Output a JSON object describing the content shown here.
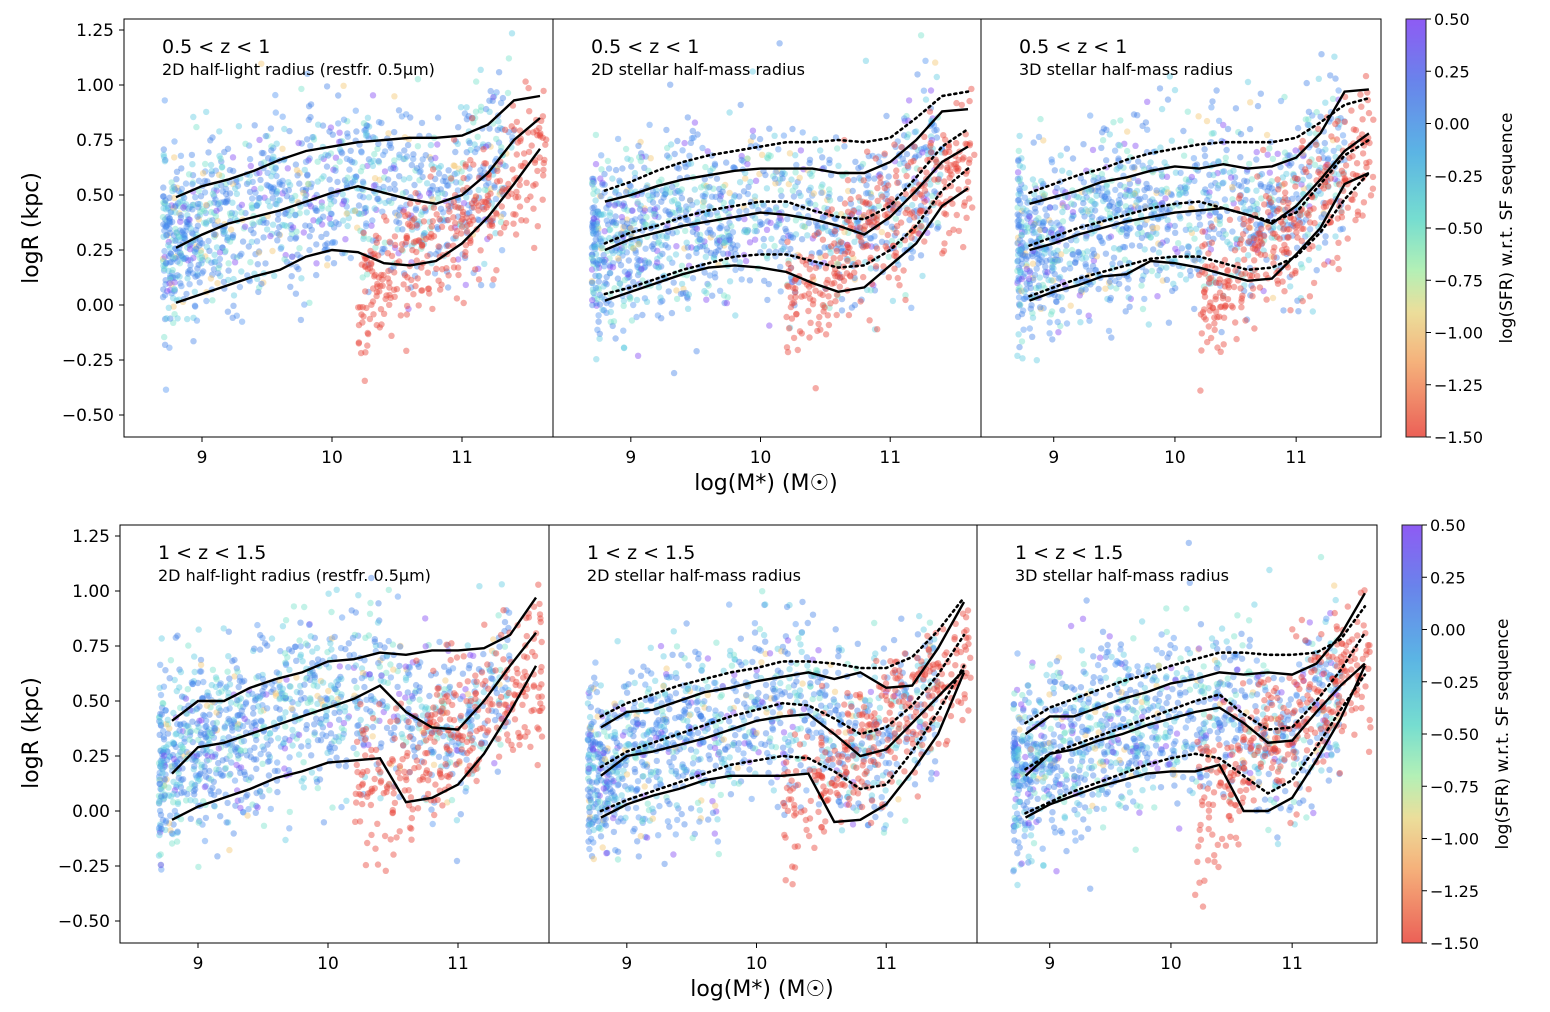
{
  "figure": {
    "y_axis_label": "logR (kpc)",
    "x_axis_label": "log(M*) (M☉)",
    "colorbar_label": "log(SFR) w.r.t. SF sequence"
  },
  "colors": {
    "star_forming_high": "#7b3ff2",
    "star_forming": "#3f7fe6",
    "green_valley": "#6fe0c8",
    "transition": "#f3c36a",
    "quiescent": "#e8453a",
    "median_lines": "#000000"
  },
  "chart_data": [
    {
      "type": "scatter",
      "row": "top",
      "redshift_label": "0.5 < z < 1",
      "subtitle": "2D half-light radius (restfr. 0.5μm)",
      "xlim": [
        8.4,
        11.7
      ],
      "ylim": [
        -0.6,
        1.3
      ],
      "xticks": [
        9,
        10,
        11
      ],
      "yticks": [
        -0.5,
        -0.25,
        0.0,
        0.25,
        0.5,
        0.75,
        1.0,
        1.25
      ],
      "x": [
        8.8,
        9.0,
        9.2,
        9.4,
        9.6,
        9.8,
        10.0,
        10.2,
        10.4,
        10.6,
        10.8,
        11.0,
        11.2,
        11.4,
        11.6
      ],
      "series": [
        {
          "style": "solid",
          "values": [
            0.49,
            0.54,
            0.57,
            0.61,
            0.66,
            0.7,
            0.72,
            0.74,
            0.75,
            0.76,
            0.76,
            0.77,
            0.82,
            0.93,
            0.95
          ]
        },
        {
          "style": "solid",
          "values": [
            0.26,
            0.32,
            0.37,
            0.4,
            0.43,
            0.47,
            0.51,
            0.54,
            0.51,
            0.48,
            0.46,
            0.5,
            0.6,
            0.75,
            0.85
          ]
        },
        {
          "style": "solid",
          "values": [
            0.01,
            0.05,
            0.09,
            0.13,
            0.16,
            0.22,
            0.25,
            0.24,
            0.19,
            0.18,
            0.2,
            0.28,
            0.4,
            0.55,
            0.71
          ]
        }
      ]
    },
    {
      "type": "scatter",
      "row": "top",
      "redshift_label": "0.5 < z < 1",
      "subtitle": "2D stellar half-mass radius",
      "xlim": [
        8.4,
        11.7
      ],
      "ylim": [
        -0.6,
        1.3
      ],
      "xticks": [
        9,
        10,
        11
      ],
      "x": [
        8.8,
        9.0,
        9.2,
        9.4,
        9.6,
        9.8,
        10.0,
        10.2,
        10.4,
        10.6,
        10.8,
        11.0,
        11.2,
        11.4,
        11.6
      ],
      "series": [
        {
          "style": "solid",
          "values": [
            0.47,
            0.5,
            0.54,
            0.57,
            0.59,
            0.61,
            0.62,
            0.62,
            0.62,
            0.6,
            0.6,
            0.65,
            0.75,
            0.88,
            0.89
          ]
        },
        {
          "style": "solid",
          "values": [
            0.25,
            0.3,
            0.33,
            0.36,
            0.38,
            0.4,
            0.42,
            0.41,
            0.39,
            0.36,
            0.32,
            0.4,
            0.52,
            0.65,
            0.72
          ]
        },
        {
          "style": "solid",
          "values": [
            0.02,
            0.06,
            0.1,
            0.14,
            0.17,
            0.18,
            0.17,
            0.15,
            0.1,
            0.06,
            0.08,
            0.18,
            0.28,
            0.45,
            0.53
          ]
        },
        {
          "style": "dotted",
          "values": [
            0.52,
            0.56,
            0.61,
            0.65,
            0.68,
            0.7,
            0.72,
            0.74,
            0.74,
            0.75,
            0.74,
            0.76,
            0.85,
            0.95,
            0.97
          ]
        },
        {
          "style": "dotted",
          "values": [
            0.28,
            0.33,
            0.36,
            0.4,
            0.43,
            0.45,
            0.47,
            0.47,
            0.43,
            0.4,
            0.39,
            0.45,
            0.58,
            0.72,
            0.8
          ]
        },
        {
          "style": "dotted",
          "values": [
            0.05,
            0.08,
            0.12,
            0.16,
            0.19,
            0.22,
            0.23,
            0.23,
            0.2,
            0.17,
            0.18,
            0.25,
            0.36,
            0.52,
            0.62
          ]
        }
      ]
    },
    {
      "type": "scatter",
      "row": "top",
      "redshift_label": "0.5 < z < 1",
      "subtitle": "3D stellar half-mass radius",
      "xlim": [
        8.4,
        11.7
      ],
      "ylim": [
        -0.6,
        1.3
      ],
      "xticks": [
        9,
        10,
        11
      ],
      "x": [
        8.8,
        9.0,
        9.2,
        9.4,
        9.6,
        9.8,
        10.0,
        10.2,
        10.4,
        10.6,
        10.8,
        11.0,
        11.2,
        11.4,
        11.6
      ],
      "series": [
        {
          "style": "solid",
          "values": [
            0.46,
            0.49,
            0.52,
            0.56,
            0.58,
            0.61,
            0.63,
            0.62,
            0.64,
            0.62,
            0.63,
            0.67,
            0.78,
            0.97,
            0.98
          ]
        },
        {
          "style": "solid",
          "values": [
            0.25,
            0.28,
            0.32,
            0.35,
            0.38,
            0.4,
            0.42,
            0.43,
            0.44,
            0.41,
            0.37,
            0.45,
            0.57,
            0.7,
            0.78
          ]
        },
        {
          "style": "solid",
          "values": [
            0.02,
            0.06,
            0.09,
            0.13,
            0.14,
            0.2,
            0.19,
            0.17,
            0.14,
            0.11,
            0.12,
            0.23,
            0.35,
            0.55,
            0.6
          ]
        },
        {
          "style": "dotted",
          "values": [
            0.51,
            0.55,
            0.59,
            0.62,
            0.66,
            0.69,
            0.71,
            0.73,
            0.74,
            0.74,
            0.74,
            0.76,
            0.83,
            0.91,
            0.94
          ]
        },
        {
          "style": "dotted",
          "values": [
            0.27,
            0.31,
            0.35,
            0.38,
            0.41,
            0.44,
            0.46,
            0.47,
            0.44,
            0.41,
            0.38,
            0.42,
            0.55,
            0.68,
            0.75
          ]
        },
        {
          "style": "dotted",
          "values": [
            0.04,
            0.08,
            0.12,
            0.15,
            0.18,
            0.21,
            0.22,
            0.22,
            0.19,
            0.16,
            0.17,
            0.22,
            0.33,
            0.48,
            0.6
          ]
        }
      ]
    },
    {
      "type": "scatter",
      "row": "bottom",
      "redshift_label": "1 < z < 1.5",
      "subtitle": "2D half-light radius (restfr. 0.5μm)",
      "xlim": [
        8.4,
        11.7
      ],
      "ylim": [
        -0.6,
        1.3
      ],
      "xticks": [
        9,
        10,
        11
      ],
      "yticks": [
        -0.5,
        -0.25,
        0.0,
        0.25,
        0.5,
        0.75,
        1.0,
        1.25
      ],
      "x": [
        8.8,
        9.0,
        9.2,
        9.4,
        9.6,
        9.8,
        10.0,
        10.2,
        10.4,
        10.6,
        10.8,
        11.0,
        11.2,
        11.4,
        11.6
      ],
      "series": [
        {
          "style": "solid",
          "values": [
            0.41,
            0.5,
            0.5,
            0.56,
            0.6,
            0.63,
            0.68,
            0.69,
            0.72,
            0.71,
            0.73,
            0.73,
            0.74,
            0.8,
            0.97
          ]
        },
        {
          "style": "solid",
          "values": [
            0.17,
            0.29,
            0.31,
            0.35,
            0.39,
            0.43,
            0.47,
            0.51,
            0.57,
            0.45,
            0.38,
            0.37,
            0.5,
            0.66,
            0.81
          ]
        },
        {
          "style": "solid",
          "values": [
            -0.04,
            0.02,
            0.06,
            0.1,
            0.15,
            0.18,
            0.22,
            0.23,
            0.24,
            0.04,
            0.06,
            0.12,
            0.26,
            0.45,
            0.66
          ]
        }
      ]
    },
    {
      "type": "scatter",
      "row": "bottom",
      "redshift_label": "1 < z < 1.5",
      "subtitle": "2D stellar half-mass radius",
      "xlim": [
        8.4,
        11.7
      ],
      "ylim": [
        -0.6,
        1.3
      ],
      "xticks": [
        9,
        10,
        11
      ],
      "x": [
        8.8,
        9.0,
        9.2,
        9.4,
        9.6,
        9.8,
        10.0,
        10.2,
        10.4,
        10.6,
        10.8,
        11.0,
        11.2,
        11.4,
        11.6
      ],
      "series": [
        {
          "style": "solid",
          "values": [
            0.38,
            0.45,
            0.46,
            0.5,
            0.54,
            0.56,
            0.59,
            0.61,
            0.63,
            0.6,
            0.63,
            0.56,
            0.57,
            0.74,
            0.95
          ]
        },
        {
          "style": "solid",
          "values": [
            0.16,
            0.25,
            0.27,
            0.3,
            0.33,
            0.37,
            0.41,
            0.43,
            0.44,
            0.35,
            0.25,
            0.28,
            0.4,
            0.52,
            0.64
          ]
        },
        {
          "style": "solid",
          "values": [
            -0.03,
            0.03,
            0.07,
            0.1,
            0.14,
            0.16,
            0.16,
            0.16,
            0.17,
            -0.05,
            -0.04,
            0.03,
            0.18,
            0.35,
            0.63
          ]
        },
        {
          "style": "dotted",
          "values": [
            0.43,
            0.49,
            0.53,
            0.57,
            0.6,
            0.63,
            0.65,
            0.68,
            0.68,
            0.67,
            0.65,
            0.65,
            0.7,
            0.82,
            0.97
          ]
        },
        {
          "style": "dotted",
          "values": [
            0.2,
            0.27,
            0.31,
            0.35,
            0.39,
            0.43,
            0.46,
            0.49,
            0.48,
            0.42,
            0.35,
            0.38,
            0.48,
            0.62,
            0.8
          ]
        },
        {
          "style": "dotted",
          "values": [
            0.0,
            0.05,
            0.09,
            0.13,
            0.17,
            0.21,
            0.23,
            0.25,
            0.24,
            0.18,
            0.1,
            0.12,
            0.27,
            0.45,
            0.66
          ]
        }
      ]
    },
    {
      "type": "scatter",
      "row": "bottom",
      "redshift_label": "1 < z < 1.5",
      "subtitle": "3D stellar half-mass radius",
      "xlim": [
        8.4,
        11.7
      ],
      "ylim": [
        -0.6,
        1.3
      ],
      "xticks": [
        9,
        10,
        11
      ],
      "x": [
        8.8,
        9.0,
        9.2,
        9.4,
        9.6,
        9.8,
        10.0,
        10.2,
        10.4,
        10.6,
        10.8,
        11.0,
        11.2,
        11.4,
        11.6
      ],
      "series": [
        {
          "style": "solid",
          "values": [
            0.35,
            0.43,
            0.43,
            0.47,
            0.51,
            0.54,
            0.58,
            0.6,
            0.63,
            0.62,
            0.63,
            0.62,
            0.67,
            0.8,
            0.99
          ]
        },
        {
          "style": "solid",
          "values": [
            0.16,
            0.26,
            0.28,
            0.32,
            0.35,
            0.39,
            0.42,
            0.45,
            0.47,
            0.4,
            0.31,
            0.32,
            0.45,
            0.57,
            0.67
          ]
        },
        {
          "style": "solid",
          "values": [
            -0.03,
            0.03,
            0.07,
            0.11,
            0.14,
            0.17,
            0.18,
            0.18,
            0.21,
            0.0,
            0.0,
            0.06,
            0.23,
            0.42,
            0.66
          ]
        },
        {
          "style": "dotted",
          "values": [
            0.4,
            0.47,
            0.51,
            0.55,
            0.59,
            0.62,
            0.66,
            0.69,
            0.72,
            0.72,
            0.71,
            0.71,
            0.72,
            0.78,
            0.93
          ]
        },
        {
          "style": "dotted",
          "values": [
            0.19,
            0.26,
            0.3,
            0.34,
            0.38,
            0.42,
            0.46,
            0.5,
            0.53,
            0.44,
            0.37,
            0.38,
            0.5,
            0.64,
            0.81
          ]
        },
        {
          "style": "dotted",
          "values": [
            -0.01,
            0.04,
            0.09,
            0.13,
            0.17,
            0.21,
            0.24,
            0.26,
            0.24,
            0.16,
            0.08,
            0.14,
            0.29,
            0.46,
            0.62
          ]
        }
      ]
    }
  ],
  "colorbar": {
    "range": [
      -1.5,
      0.5
    ],
    "ticks": [
      "0.50",
      "0.25",
      "0.00",
      "−0.25",
      "−0.50",
      "−0.75",
      "−1.00",
      "−1.25",
      "−1.50"
    ]
  },
  "tick_text": {
    "y": [
      "1.25",
      "1.00",
      "0.75",
      "0.50",
      "0.25",
      "0.00",
      "−0.25",
      "−0.50"
    ],
    "x": [
      "9",
      "10",
      "11"
    ]
  }
}
